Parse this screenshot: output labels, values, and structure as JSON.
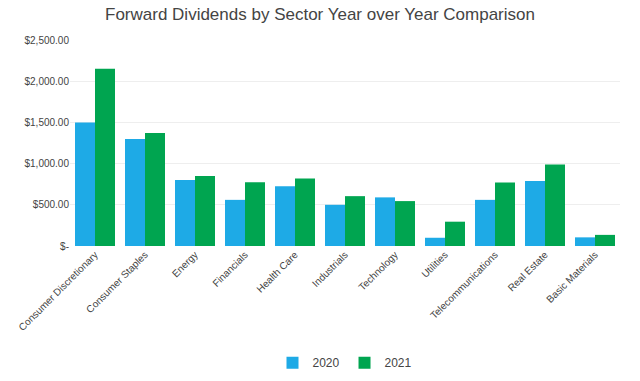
{
  "chart_data": {
    "type": "bar",
    "title": "Forward Dividends by Sector Year over Year Comparison",
    "categories": [
      "Consumer Discretionary",
      "Consumer Staples",
      "Energy",
      "Financials",
      "Health Care",
      "Industrials",
      "Technology",
      "Utilities",
      "Telecommunications",
      "Real Estate",
      "Basic Materials"
    ],
    "series": [
      {
        "name": "2020",
        "color": "#1EAAE6",
        "values": [
          1500,
          1300,
          800,
          560,
          725,
          500,
          590,
          100,
          560,
          790,
          105
        ]
      },
      {
        "name": "2021",
        "color": "#00A550",
        "values": [
          2150,
          1370,
          850,
          775,
          820,
          605,
          545,
          295,
          770,
          990,
          135
        ]
      }
    ],
    "ylim": [
      0,
      2500
    ],
    "yticks": [
      {
        "value": 0,
        "label": "$-"
      },
      {
        "value": 500,
        "label": "$500.00"
      },
      {
        "value": 1000,
        "label": "$1,000.00"
      },
      {
        "value": 1500,
        "label": "$1,500.00"
      },
      {
        "value": 2000,
        "label": "$2,000.00"
      },
      {
        "value": 2500,
        "label": "$2,500.00"
      }
    ],
    "grid": true,
    "legend": "bottom"
  }
}
